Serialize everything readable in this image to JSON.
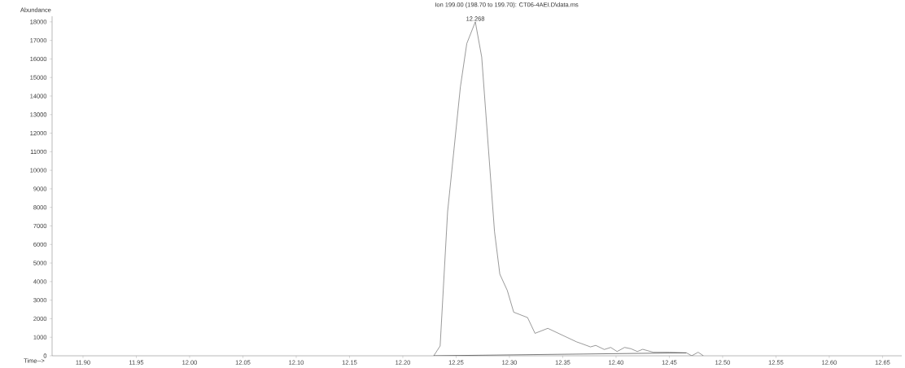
{
  "chart_data": {
    "type": "line",
    "title": "Ion 199.00 (198.70 to 199.70): CT06-4AEI.D\\data.ms",
    "xlabel": "Time-->",
    "ylabel": "Abundance",
    "xlim": [
      11.871,
      12.668
    ],
    "ylim": [
      0,
      18300
    ],
    "xticks": [
      {
        "value": 11.9,
        "label": "11.90"
      },
      {
        "value": 11.95,
        "label": "11.95"
      },
      {
        "value": 12.0,
        "label": "12.00"
      },
      {
        "value": 12.05,
        "label": "12.05"
      },
      {
        "value": 12.1,
        "label": "12.10"
      },
      {
        "value": 12.15,
        "label": "12.15"
      },
      {
        "value": 12.2,
        "label": "12.20"
      },
      {
        "value": 12.25,
        "label": "12.25"
      },
      {
        "value": 12.3,
        "label": "12.30"
      },
      {
        "value": 12.35,
        "label": "12.35"
      },
      {
        "value": 12.4,
        "label": "12.40"
      },
      {
        "value": 12.45,
        "label": "12.45"
      },
      {
        "value": 12.5,
        "label": "12.50"
      },
      {
        "value": 12.55,
        "label": "12.55"
      },
      {
        "value": 12.6,
        "label": "12.60"
      },
      {
        "value": 12.65,
        "label": "12.65"
      }
    ],
    "yticks": [
      0,
      1000,
      2000,
      3000,
      4000,
      5000,
      6000,
      7000,
      8000,
      9000,
      10000,
      11000,
      12000,
      13000,
      14000,
      15000,
      16000,
      17000,
      18000
    ],
    "grid": false,
    "marker": "none",
    "line_style": "solid",
    "series": [
      {
        "color": "#555555",
        "x": [
          12.229,
          12.235,
          12.242,
          12.254,
          12.26,
          12.268,
          12.274,
          12.286,
          12.291,
          12.298,
          12.304,
          12.317,
          12.324,
          12.336,
          12.363,
          12.367,
          12.376,
          12.381,
          12.389,
          12.395,
          12.401,
          12.408,
          12.414,
          12.42,
          12.425,
          12.435,
          12.45,
          12.466,
          12.471,
          12.477,
          12.482
        ],
        "values": [
          0,
          530,
          7760,
          14490,
          16830,
          18000,
          16100,
          6700,
          4400,
          3520,
          2350,
          2060,
          1210,
          1480,
          750,
          670,
          480,
          560,
          340,
          450,
          230,
          450,
          380,
          230,
          350,
          190,
          190,
          160,
          0,
          190,
          0
        ]
      },
      {
        "color": "#222222",
        "x": [
          12.229,
          12.466
        ],
        "values": [
          0,
          160
        ]
      }
    ],
    "annotations": [
      {
        "text": "12.268",
        "x": 12.268,
        "y": 18000
      }
    ]
  }
}
